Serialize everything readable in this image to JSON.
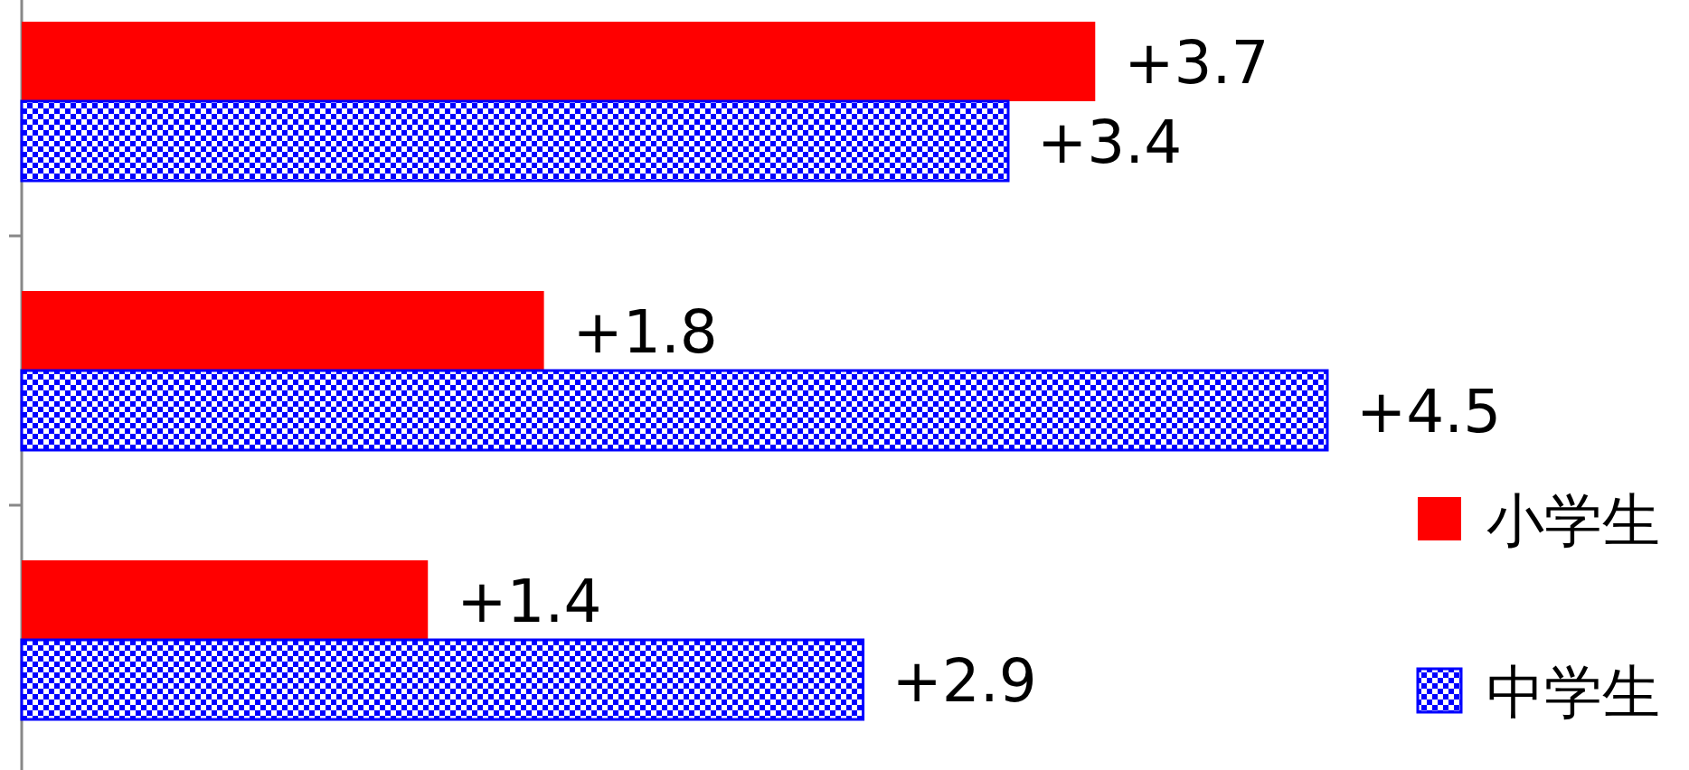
{
  "chart_data": {
    "type": "bar",
    "orientation": "horizontal",
    "categories": [
      null,
      null,
      null
    ],
    "legend": "bottom right",
    "series": [
      {
        "name": "小学生",
        "color": "#ff0000",
        "values": [
          3.7,
          1.8,
          1.4
        ],
        "value_labels": [
          "+3.7",
          "+1.8",
          "+1.4"
        ]
      },
      {
        "name": "中学生",
        "color": "#0000ff",
        "values": [
          3.4,
          4.5,
          2.9
        ],
        "value_labels": [
          "+3.4",
          "+4.5",
          "+2.9"
        ]
      }
    ]
  }
}
